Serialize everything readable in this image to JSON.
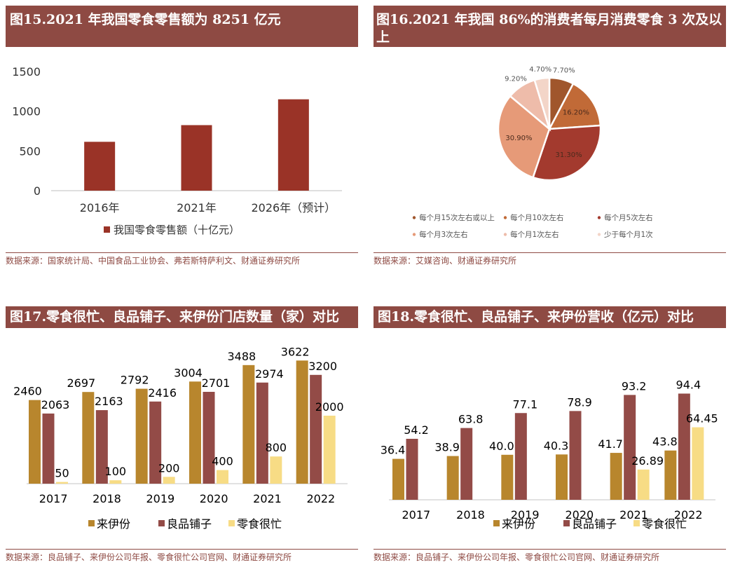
{
  "colors": {
    "title_bg": "#8e4a43",
    "bar_red": "#9a3327",
    "laiyifen": "#b8862d",
    "liangpin": "#934b47",
    "lingshi": "#f7dc85",
    "pie": [
      "#a0562c",
      "#c16a37",
      "#a33a2e",
      "#e69a78",
      "#eebcaa",
      "#f3d5c8"
    ]
  },
  "panels": {
    "p15": {
      "title": "图15.2021 年我国零食零售额为 8251 亿元",
      "source": "数据来源：国家统计局、中国食品工业协会、弗若斯特萨利文、财通证券研究所"
    },
    "p16": {
      "title": "图16.2021 年我国 86%的消费者每月消费零食 3 次及以上",
      "source": "数据来源：艾媒咨询、财通证券研究所"
    },
    "p17": {
      "title": "图17.零食很忙、良品铺子、来伊份门店数量（家）对比",
      "source": "数据来源：良品铺子、来伊份公司年报、零食很忙公司官网、财通证券研究所"
    },
    "p18": {
      "title": "图18.零食很忙、良品铺子、来伊份营收（亿元）对比",
      "source": "数据来源：良品铺子、来伊份公司年报、零食很忙公司官网、财通证券研究所"
    }
  },
  "chart_data": [
    {
      "id": "fig15",
      "type": "bar",
      "categories": [
        "2016年",
        "2021年",
        "2026年（预计）"
      ],
      "series": [
        {
          "name": "我国零食零售额（十亿元）",
          "values": [
            615,
            825,
            1150
          ]
        }
      ],
      "yticks": [
        0,
        500,
        1000,
        1500
      ],
      "ylim": [
        0,
        1500
      ],
      "legend": "bottom"
    },
    {
      "id": "fig16",
      "type": "pie",
      "labels": [
        "每个月15次左右或以上",
        "每个月10次左右",
        "每个月5次左右",
        "每个月3次左右",
        "每个月1次左右",
        "少于每个月1次"
      ],
      "values": [
        7.7,
        16.2,
        31.3,
        30.9,
        9.2,
        4.7
      ],
      "value_labels": [
        "7.70%",
        "16.20%",
        "31.30%",
        "30.90%",
        "9.20%",
        "4.70%"
      ],
      "legend": "bottom"
    },
    {
      "id": "fig17",
      "type": "bar",
      "categories": [
        "2017",
        "2018",
        "2019",
        "2020",
        "2021",
        "2022"
      ],
      "series": [
        {
          "name": "来伊份",
          "values": [
            2460,
            2697,
            2792,
            3004,
            3488,
            3622
          ]
        },
        {
          "name": "良品铺子",
          "values": [
            2063,
            2163,
            2416,
            2701,
            2974,
            3200
          ]
        },
        {
          "name": "零食很忙",
          "values": [
            50,
            100,
            200,
            400,
            800,
            2000
          ]
        }
      ],
      "ylim": [
        0,
        4000
      ],
      "legend": "bottom"
    },
    {
      "id": "fig18",
      "type": "bar",
      "categories": [
        "2017",
        "2018",
        "2019",
        "2020",
        "2021",
        "2022"
      ],
      "series": [
        {
          "name": "来伊份",
          "values": [
            36.4,
            38.9,
            40.0,
            40.3,
            41.7,
            43.8
          ],
          "labels": [
            "36.4",
            "38.9",
            "40.0",
            "40.3",
            "41.7",
            "43.8"
          ]
        },
        {
          "name": "良品铺子",
          "values": [
            54.2,
            63.8,
            77.1,
            78.9,
            93.2,
            94.4
          ],
          "labels": [
            "54.2",
            "63.8",
            "77.1",
            "78.9",
            "93.2",
            "94.4"
          ]
        },
        {
          "name": "零食很忙",
          "values": [
            null,
            null,
            null,
            null,
            26.89,
            64.45
          ],
          "labels": [
            "",
            "",
            "",
            "",
            "26.89",
            "64.45"
          ]
        }
      ],
      "ylim": [
        0,
        120
      ],
      "legend": "bottom"
    }
  ]
}
